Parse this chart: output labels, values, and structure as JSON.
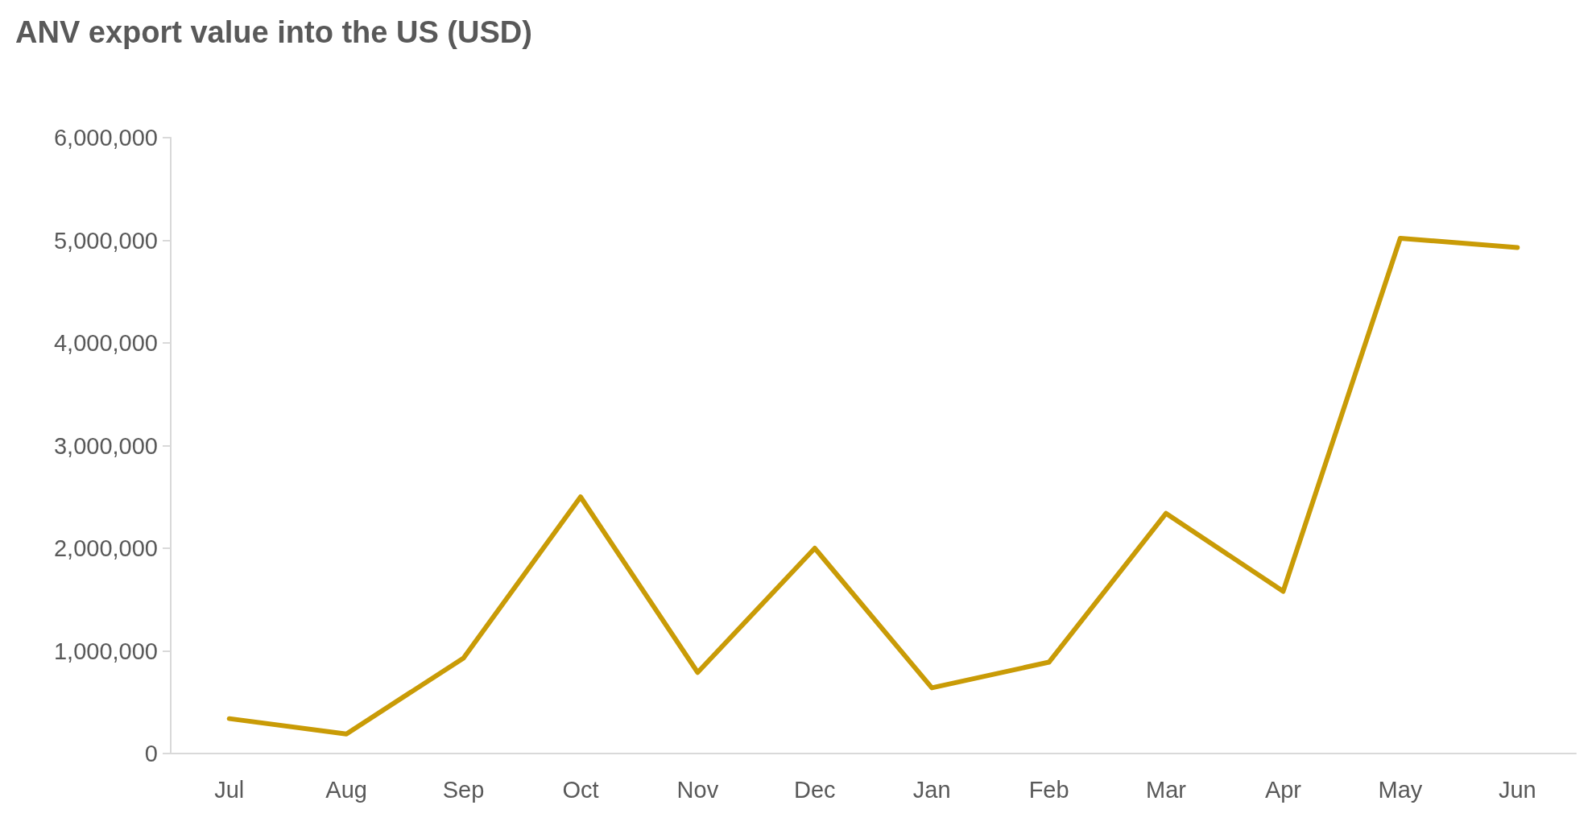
{
  "chart_data": {
    "type": "line",
    "title": "ANV export value into the US (USD)",
    "categories": [
      "Jul",
      "Aug",
      "Sep",
      "Oct",
      "Nov",
      "Dec",
      "Jan",
      "Feb",
      "Mar",
      "Apr",
      "May",
      "Jun"
    ],
    "series": [
      {
        "color": "#c99b06",
        "values": [
          340000,
          190000,
          930000,
          2500000,
          790000,
          2000000,
          640000,
          890000,
          2340000,
          1580000,
          5020000,
          4930000
        ]
      }
    ],
    "ylim": [
      0,
      6000000
    ],
    "yticks": [
      {
        "value": 0,
        "label": "0"
      },
      {
        "value": 1000000,
        "label": "1,000,000"
      },
      {
        "value": 2000000,
        "label": "2,000,000"
      },
      {
        "value": 3000000,
        "label": "3,000,000"
      },
      {
        "value": 4000000,
        "label": "4,000,000"
      },
      {
        "value": 5000000,
        "label": "5,000,000"
      },
      {
        "value": 6000000,
        "label": "6,000,000"
      }
    ],
    "grid": false,
    "marker": "none",
    "line_style": "solid"
  }
}
